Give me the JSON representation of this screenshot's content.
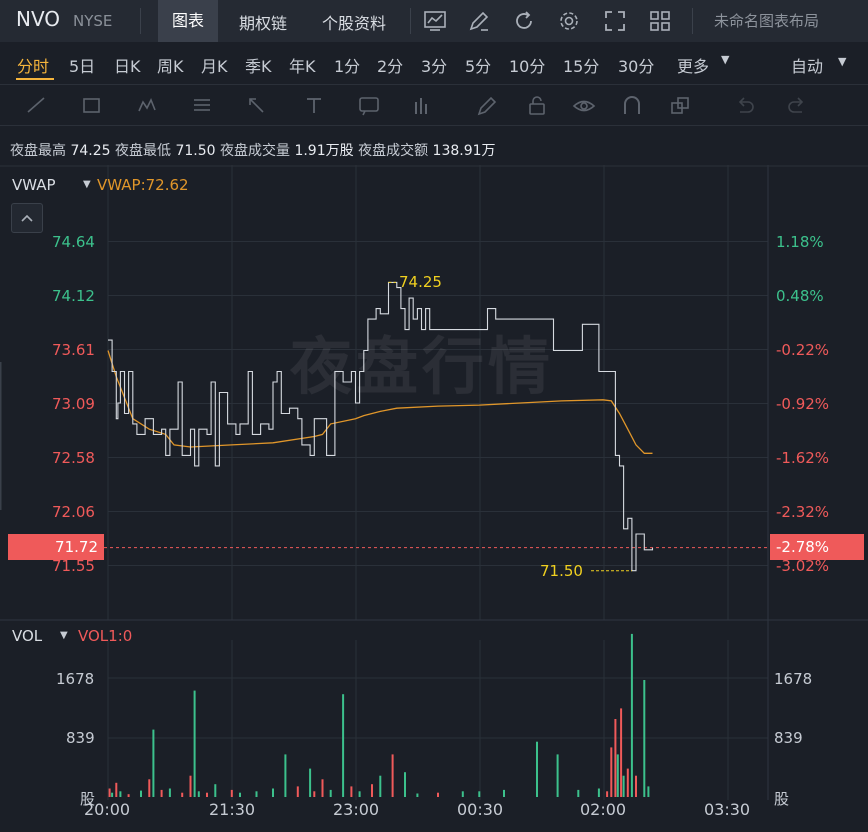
{
  "header": {
    "symbol": "NVO",
    "exchange": "NYSE",
    "tabs": [
      "图表",
      "期权链",
      "个股资料"
    ],
    "layout_label": "未命名图表布局"
  },
  "timeframes": {
    "items": [
      "分时",
      "5日",
      "日K",
      "周K",
      "月K",
      "季K",
      "年K",
      "1分",
      "2分",
      "3分",
      "5分",
      "10分",
      "15分",
      "30分",
      "更多"
    ],
    "active": "分时",
    "auto_label": "自动"
  },
  "toolbar_icons": [
    "line-draw-icon",
    "rectangle-icon",
    "pattern-icon",
    "fibonacci-icon",
    "arrow-icon",
    "text-icon",
    "annotation-icon",
    "bar-measure-icon",
    "pencil-icon",
    "lock-icon",
    "eye-icon",
    "magnet-icon",
    "layers-icon",
    "undo-icon",
    "redo-icon"
  ],
  "stats": {
    "items": [
      {
        "label": "夜盘最高",
        "value": "74.25"
      },
      {
        "label": "夜盘最低",
        "value": "71.50"
      },
      {
        "label": "夜盘成交量",
        "value": "1.91万股"
      },
      {
        "label": "夜盘成交额",
        "value": "138.91万"
      }
    ]
  },
  "price_pane": {
    "indicator": "VWAP",
    "indicator_value": "VWAP:72.62",
    "watermark": "夜盘行情",
    "left_axis": [
      "74.64",
      "74.12",
      "73.61",
      "73.09",
      "72.58",
      "72.06",
      "71.55"
    ],
    "right_axis": [
      "1.18%",
      "0.48%",
      "-0.22%",
      "-0.92%",
      "-1.62%",
      "-2.32%",
      "-3.02%"
    ],
    "current_price": "71.72",
    "current_pct": "-2.78%",
    "high_marker": "74.25",
    "low_marker": "71.50"
  },
  "volume_pane": {
    "indicator": "VOL",
    "indicator_value": "VOL1:0",
    "left_axis": [
      "1678",
      "839",
      "股"
    ],
    "right_axis": [
      "1678",
      "839",
      "股"
    ]
  },
  "x_axis": [
    "20:00",
    "21:30",
    "23:00",
    "00:30",
    "02:00",
    "03:30"
  ],
  "colors": {
    "up": "#3cc18c",
    "down": "#f05a5a",
    "vwap": "#e0962a",
    "accent": "#f5b43c",
    "marker": "#f0d020"
  },
  "chart_data": {
    "type": "line",
    "ylim": [
      71.3,
      74.9
    ],
    "price_series": [
      [
        20.0,
        73.7
      ],
      [
        20.05,
        73.4
      ],
      [
        20.1,
        72.95
      ],
      [
        20.12,
        73.1
      ],
      [
        20.15,
        73.4
      ],
      [
        20.2,
        73.0
      ],
      [
        20.25,
        73.4
      ],
      [
        20.3,
        72.9
      ],
      [
        20.35,
        72.8
      ],
      [
        20.45,
        72.95
      ],
      [
        20.55,
        72.8
      ],
      [
        20.65,
        72.85
      ],
      [
        20.7,
        72.6
      ],
      [
        20.75,
        72.85
      ],
      [
        20.85,
        73.3
      ],
      [
        20.9,
        72.6
      ],
      [
        21.0,
        72.85
      ],
      [
        21.05,
        72.5
      ],
      [
        21.1,
        72.85
      ],
      [
        21.2,
        72.8
      ],
      [
        21.25,
        73.3
      ],
      [
        21.3,
        72.5
      ],
      [
        21.35,
        73.2
      ],
      [
        21.45,
        72.9
      ],
      [
        21.55,
        72.8
      ],
      [
        21.6,
        72.9
      ],
      [
        21.7,
        73.4
      ],
      [
        21.75,
        72.8
      ],
      [
        21.85,
        72.9
      ],
      [
        21.95,
        72.85
      ],
      [
        22.0,
        73.3
      ],
      [
        22.05,
        73.4
      ],
      [
        22.1,
        73.0
      ],
      [
        22.2,
        73.05
      ],
      [
        22.3,
        72.95
      ],
      [
        22.35,
        72.7
      ],
      [
        22.45,
        72.6
      ],
      [
        22.5,
        72.95
      ],
      [
        22.6,
        72.95
      ],
      [
        22.65,
        72.6
      ],
      [
        22.75,
        73.4
      ],
      [
        22.85,
        73.3
      ],
      [
        22.95,
        73.4
      ],
      [
        23.0,
        73.1
      ],
      [
        23.05,
        73.4
      ],
      [
        23.1,
        73.6
      ],
      [
        23.15,
        73.9
      ],
      [
        23.2,
        73.9
      ],
      [
        23.25,
        74.0
      ],
      [
        23.3,
        73.95
      ],
      [
        23.4,
        74.25
      ],
      [
        23.5,
        74.2
      ],
      [
        23.55,
        74.0
      ],
      [
        23.6,
        73.8
      ],
      [
        23.65,
        74.1
      ],
      [
        23.7,
        73.9
      ],
      [
        23.75,
        74.0
      ],
      [
        23.8,
        73.8
      ],
      [
        23.85,
        74.0
      ],
      [
        23.9,
        73.8
      ],
      [
        24.0,
        73.8
      ],
      [
        24.5,
        73.8
      ],
      [
        24.6,
        74.0
      ],
      [
        24.7,
        73.9
      ],
      [
        25.0,
        73.9
      ],
      [
        25.35,
        73.9
      ],
      [
        25.4,
        73.6
      ],
      [
        25.6,
        73.6
      ],
      [
        25.75,
        73.85
      ],
      [
        25.9,
        73.85
      ],
      [
        25.95,
        73.4
      ],
      [
        26.1,
        73.4
      ],
      [
        26.15,
        72.6
      ],
      [
        26.2,
        72.5
      ],
      [
        26.25,
        71.9
      ],
      [
        26.3,
        72.0
      ],
      [
        26.35,
        71.5
      ],
      [
        26.4,
        71.85
      ],
      [
        26.5,
        71.7
      ],
      [
        26.6,
        71.72
      ]
    ],
    "vwap_series": [
      [
        20.0,
        73.6
      ],
      [
        20.1,
        73.35
      ],
      [
        20.3,
        72.95
      ],
      [
        20.5,
        72.85
      ],
      [
        20.7,
        72.8
      ],
      [
        20.8,
        72.7
      ],
      [
        21.0,
        72.68
      ],
      [
        21.5,
        72.7
      ],
      [
        22.0,
        72.72
      ],
      [
        22.5,
        72.78
      ],
      [
        22.6,
        72.8
      ],
      [
        22.7,
        72.9
      ],
      [
        23.0,
        72.95
      ],
      [
        23.1,
        72.98
      ],
      [
        23.3,
        73.02
      ],
      [
        23.5,
        73.05
      ],
      [
        24.0,
        73.07
      ],
      [
        24.5,
        73.08
      ],
      [
        25.0,
        73.1
      ],
      [
        25.5,
        73.12
      ],
      [
        26.0,
        73.13
      ],
      [
        26.1,
        73.12
      ],
      [
        26.2,
        73.0
      ],
      [
        26.3,
        72.85
      ],
      [
        26.4,
        72.7
      ],
      [
        26.5,
        72.62
      ],
      [
        26.6,
        72.62
      ]
    ],
    "volume_bars": [
      [
        20.02,
        120,
        "down"
      ],
      [
        20.05,
        60,
        "up"
      ],
      [
        20.1,
        200,
        "down"
      ],
      [
        20.15,
        80,
        "up"
      ],
      [
        20.25,
        40,
        "down"
      ],
      [
        20.4,
        90,
        "up"
      ],
      [
        20.5,
        250,
        "down"
      ],
      [
        20.55,
        950,
        "up"
      ],
      [
        20.65,
        100,
        "down"
      ],
      [
        20.75,
        120,
        "up"
      ],
      [
        20.9,
        60,
        "down"
      ],
      [
        21.0,
        300,
        "down"
      ],
      [
        21.05,
        1500,
        "up"
      ],
      [
        21.1,
        80,
        "up"
      ],
      [
        21.2,
        60,
        "down"
      ],
      [
        21.3,
        180,
        "up"
      ],
      [
        21.5,
        100,
        "down"
      ],
      [
        21.6,
        60,
        "up"
      ],
      [
        21.8,
        80,
        "up"
      ],
      [
        22.0,
        120,
        "up"
      ],
      [
        22.15,
        600,
        "up"
      ],
      [
        22.3,
        150,
        "down"
      ],
      [
        22.45,
        400,
        "up"
      ],
      [
        22.5,
        80,
        "down"
      ],
      [
        22.6,
        250,
        "down"
      ],
      [
        22.7,
        100,
        "up"
      ],
      [
        22.85,
        1450,
        "up"
      ],
      [
        22.95,
        150,
        "down"
      ],
      [
        23.05,
        80,
        "up"
      ],
      [
        23.2,
        180,
        "down"
      ],
      [
        23.3,
        300,
        "up"
      ],
      [
        23.45,
        600,
        "down"
      ],
      [
        23.6,
        350,
        "up"
      ],
      [
        23.75,
        50,
        "up"
      ],
      [
        24.0,
        60,
        "down"
      ],
      [
        24.3,
        80,
        "up"
      ],
      [
        24.5,
        80,
        "up"
      ],
      [
        24.8,
        100,
        "up"
      ],
      [
        25.2,
        780,
        "up"
      ],
      [
        25.45,
        600,
        "up"
      ],
      [
        25.7,
        100,
        "up"
      ],
      [
        25.95,
        120,
        "up"
      ],
      [
        26.05,
        80,
        "down"
      ],
      [
        26.1,
        700,
        "down"
      ],
      [
        26.15,
        1100,
        "down"
      ],
      [
        26.18,
        600,
        "up"
      ],
      [
        26.22,
        1250,
        "down"
      ],
      [
        26.25,
        300,
        "up"
      ],
      [
        26.3,
        400,
        "down"
      ],
      [
        26.35,
        2300,
        "up"
      ],
      [
        26.4,
        300,
        "down"
      ],
      [
        26.5,
        1650,
        "up"
      ],
      [
        26.55,
        150,
        "up"
      ]
    ]
  }
}
